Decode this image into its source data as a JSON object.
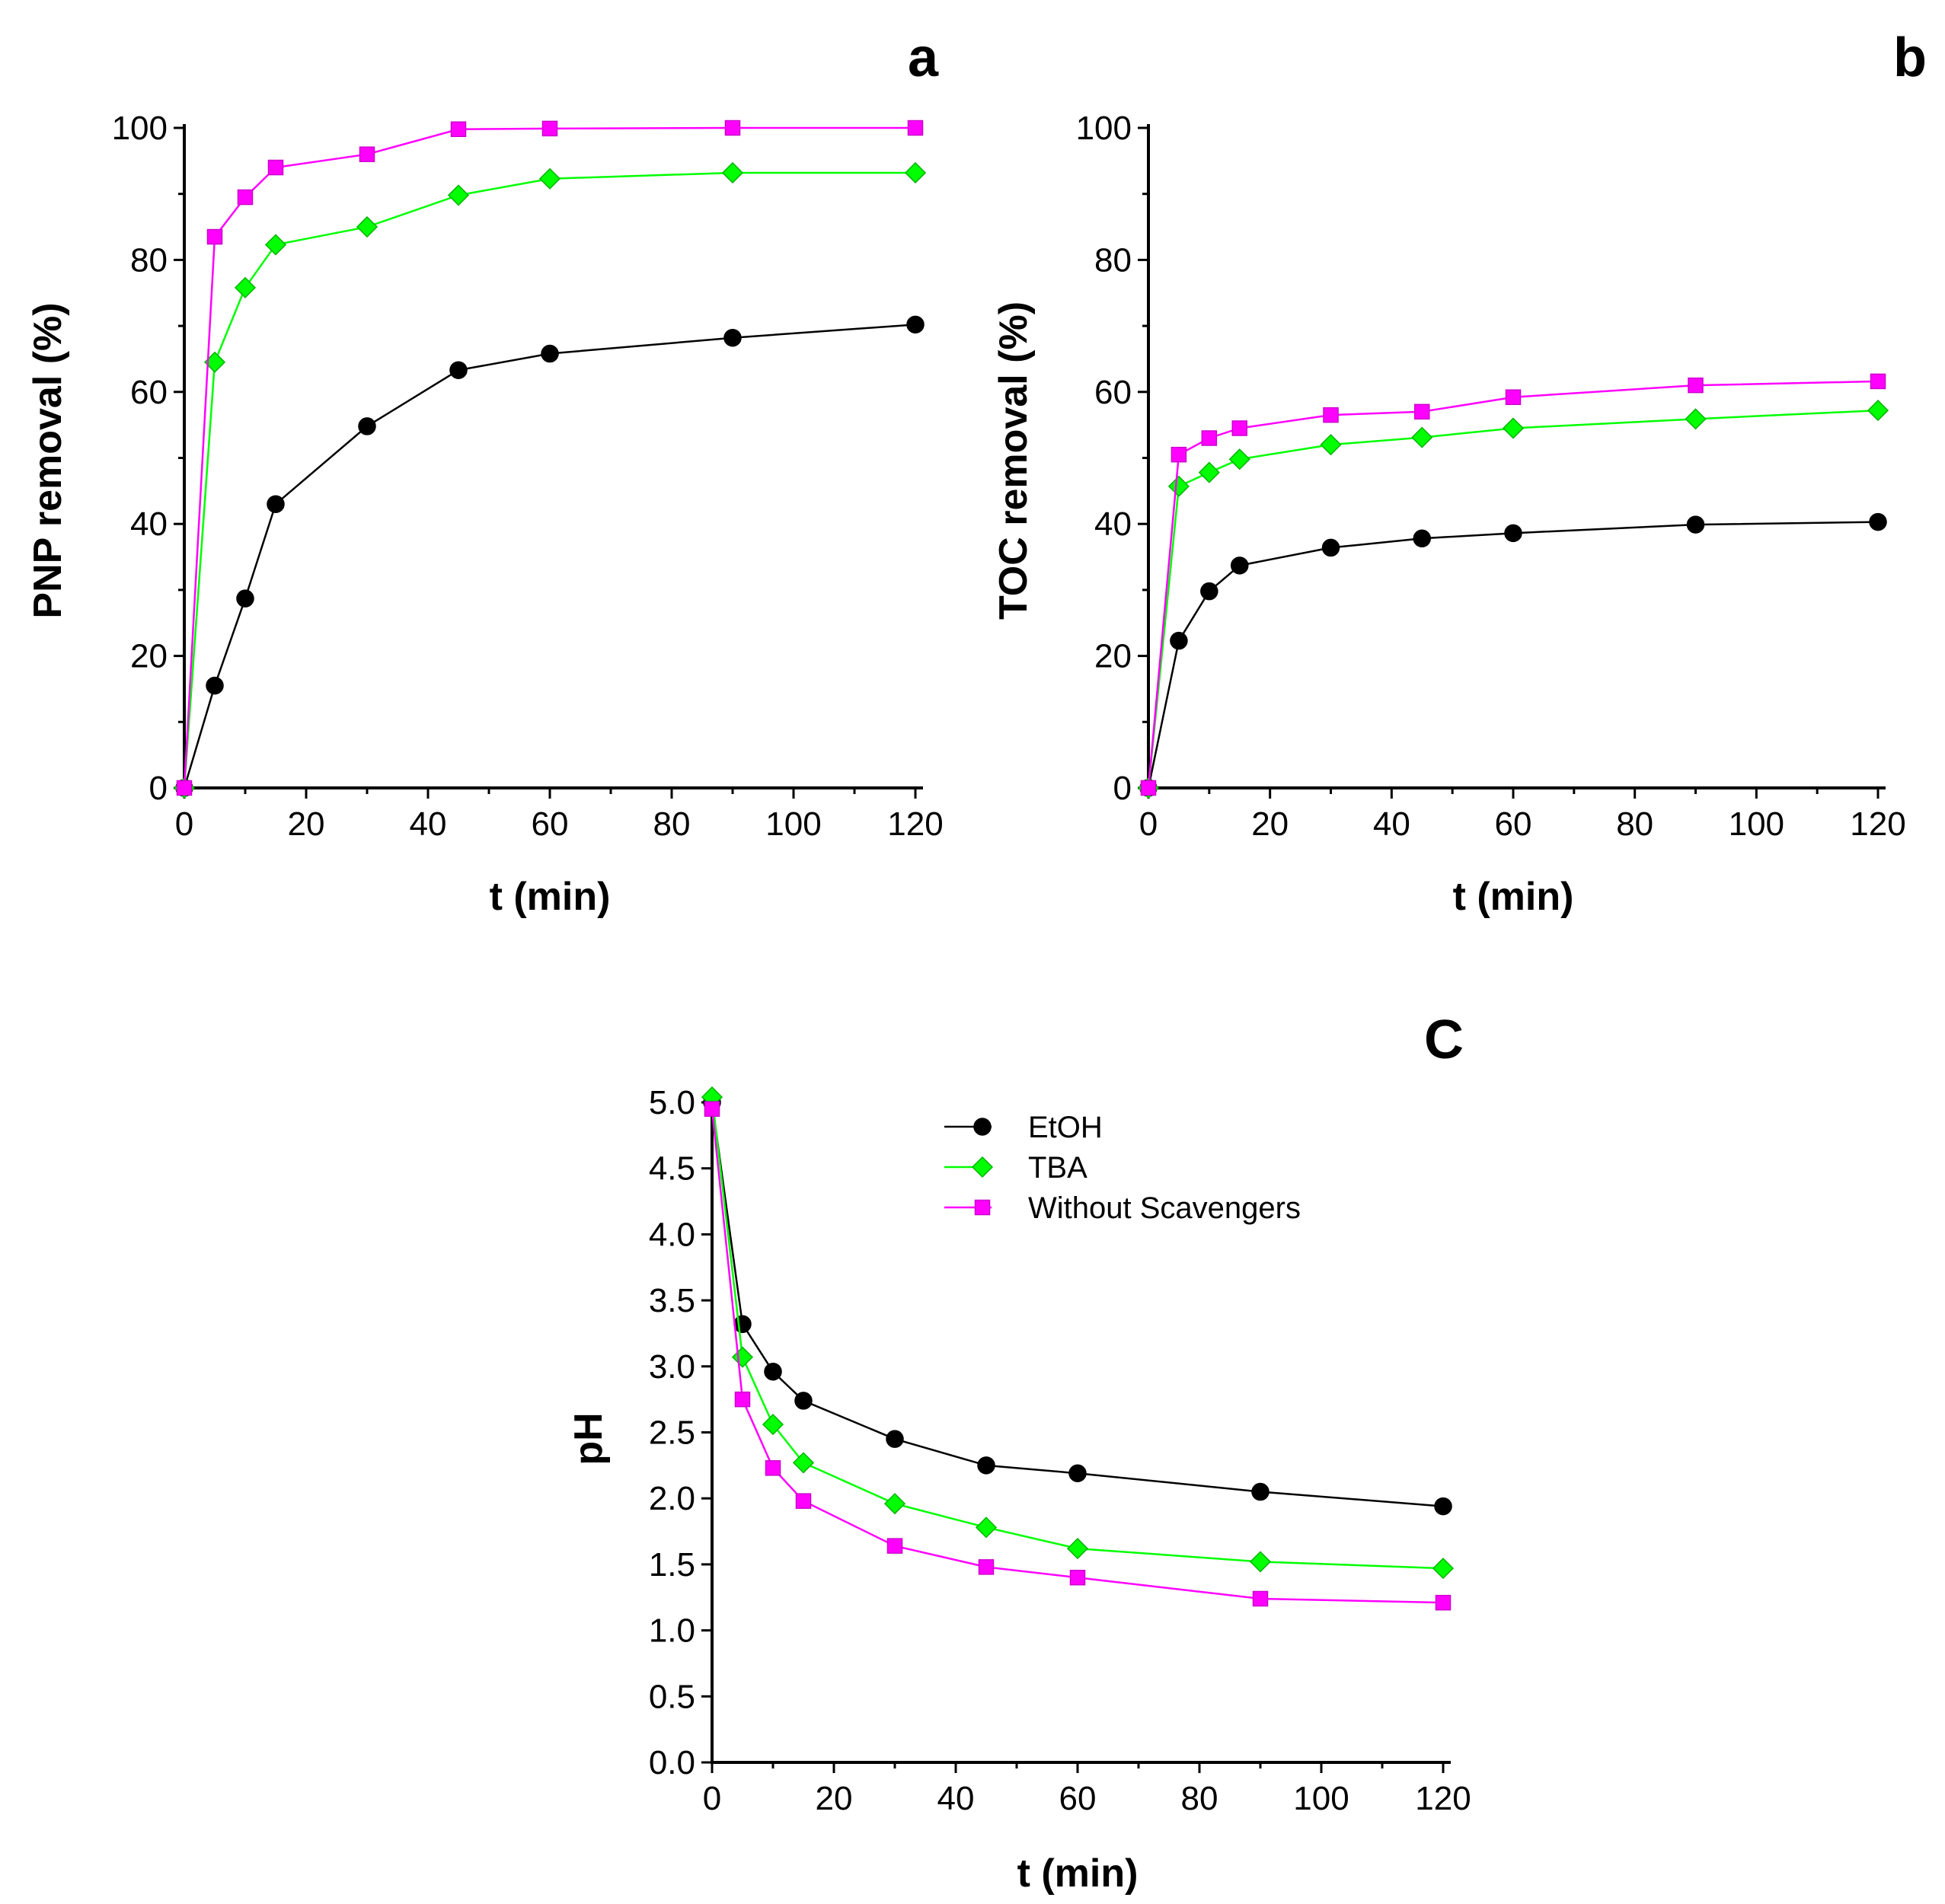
{
  "series_styles": [
    {
      "name": "EtOH",
      "color": "#000000",
      "marker": "circle"
    },
    {
      "name": "TBA",
      "color": "#00ff00",
      "marker": "diamond"
    },
    {
      "name": "Without Scavengers",
      "color": "#ff00ff",
      "marker": "square"
    }
  ],
  "chart_data": [
    {
      "type": "line",
      "panel_label": "a",
      "title": "",
      "xlabel": "t (min)",
      "ylabel": "PNP removal (%)",
      "xlim": [
        0,
        120
      ],
      "ylim": [
        0,
        100
      ],
      "x_ticks": [
        0,
        20,
        40,
        60,
        80,
        100,
        120
      ],
      "y_ticks": [
        0,
        20,
        40,
        60,
        80,
        100
      ],
      "x_tick_labels": [
        "0",
        "20",
        "40",
        "60",
        "80",
        "100",
        "120"
      ],
      "y_tick_labels": [
        "0",
        "20",
        "40",
        "60",
        "80",
        "100"
      ],
      "x": [
        0,
        5,
        10,
        15,
        30,
        45,
        60,
        90,
        120
      ],
      "series": [
        {
          "name": "EtOH",
          "values": [
            0,
            15.5,
            28.7,
            43.0,
            54.8,
            63.3,
            65.8,
            68.2,
            70.2
          ]
        },
        {
          "name": "TBA",
          "values": [
            0,
            64.5,
            75.8,
            82.3,
            85.0,
            89.8,
            92.3,
            93.2,
            93.2
          ]
        },
        {
          "name": "Without Scavengers",
          "values": [
            0,
            83.5,
            89.5,
            94.0,
            96.0,
            99.8,
            99.9,
            100.0,
            100.0
          ]
        }
      ],
      "legend": false
    },
    {
      "type": "line",
      "panel_label": "b",
      "title": "",
      "xlabel": "t (min)",
      "ylabel": "TOC removal (%)",
      "xlim": [
        0,
        120
      ],
      "ylim": [
        0,
        100
      ],
      "x_ticks": [
        0,
        20,
        40,
        60,
        80,
        100,
        120
      ],
      "y_ticks": [
        0,
        20,
        40,
        60,
        80,
        100
      ],
      "x_tick_labels": [
        "0",
        "20",
        "40",
        "60",
        "80",
        "100",
        "120"
      ],
      "y_tick_labels": [
        "0",
        "20",
        "40",
        "60",
        "80",
        "100"
      ],
      "x": [
        0,
        5,
        10,
        15,
        30,
        45,
        60,
        90,
        120
      ],
      "series": [
        {
          "name": "EtOH",
          "values": [
            0,
            22.3,
            29.8,
            33.7,
            36.4,
            37.8,
            38.6,
            39.9,
            40.3
          ]
        },
        {
          "name": "TBA",
          "values": [
            0,
            45.7,
            47.8,
            49.8,
            52.0,
            53.1,
            54.5,
            55.9,
            57.2
          ]
        },
        {
          "name": "Without Scavengers",
          "values": [
            0,
            50.5,
            53.0,
            54.5,
            56.5,
            57.0,
            59.2,
            61.0,
            61.6
          ]
        }
      ],
      "legend": false
    },
    {
      "type": "line",
      "panel_label": "C",
      "title": "",
      "xlabel": "t (min)",
      "ylabel": "pH",
      "xlim": [
        0,
        120
      ],
      "ylim": [
        0,
        5.0
      ],
      "x_ticks": [
        0,
        20,
        40,
        60,
        80,
        100,
        120
      ],
      "y_ticks": [
        0,
        0.5,
        1.0,
        1.5,
        2.0,
        2.5,
        3.0,
        3.5,
        4.0,
        4.5,
        5.0
      ],
      "x_tick_labels": [
        "0",
        "20",
        "40",
        "60",
        "80",
        "100",
        "120"
      ],
      "y_tick_labels": [
        "0.0",
        "0.5",
        "1.0",
        "1.5",
        "2.0",
        "2.5",
        "3.0",
        "3.5",
        "4.0",
        "4.5",
        "5.0"
      ],
      "x": [
        0,
        5,
        10,
        15,
        30,
        45,
        60,
        90,
        120
      ],
      "series": [
        {
          "name": "EtOH",
          "values": [
            5.0,
            3.32,
            2.96,
            2.74,
            2.45,
            2.25,
            2.19,
            2.05,
            1.94
          ]
        },
        {
          "name": "TBA",
          "values": [
            5.04,
            3.07,
            2.56,
            2.27,
            1.96,
            1.78,
            1.62,
            1.52,
            1.47
          ]
        },
        {
          "name": "Without Scavengers",
          "values": [
            4.95,
            2.75,
            2.23,
            1.98,
            1.64,
            1.48,
            1.4,
            1.24,
            1.21
          ]
        }
      ],
      "legend": true,
      "legend_position": "top-center"
    }
  ]
}
